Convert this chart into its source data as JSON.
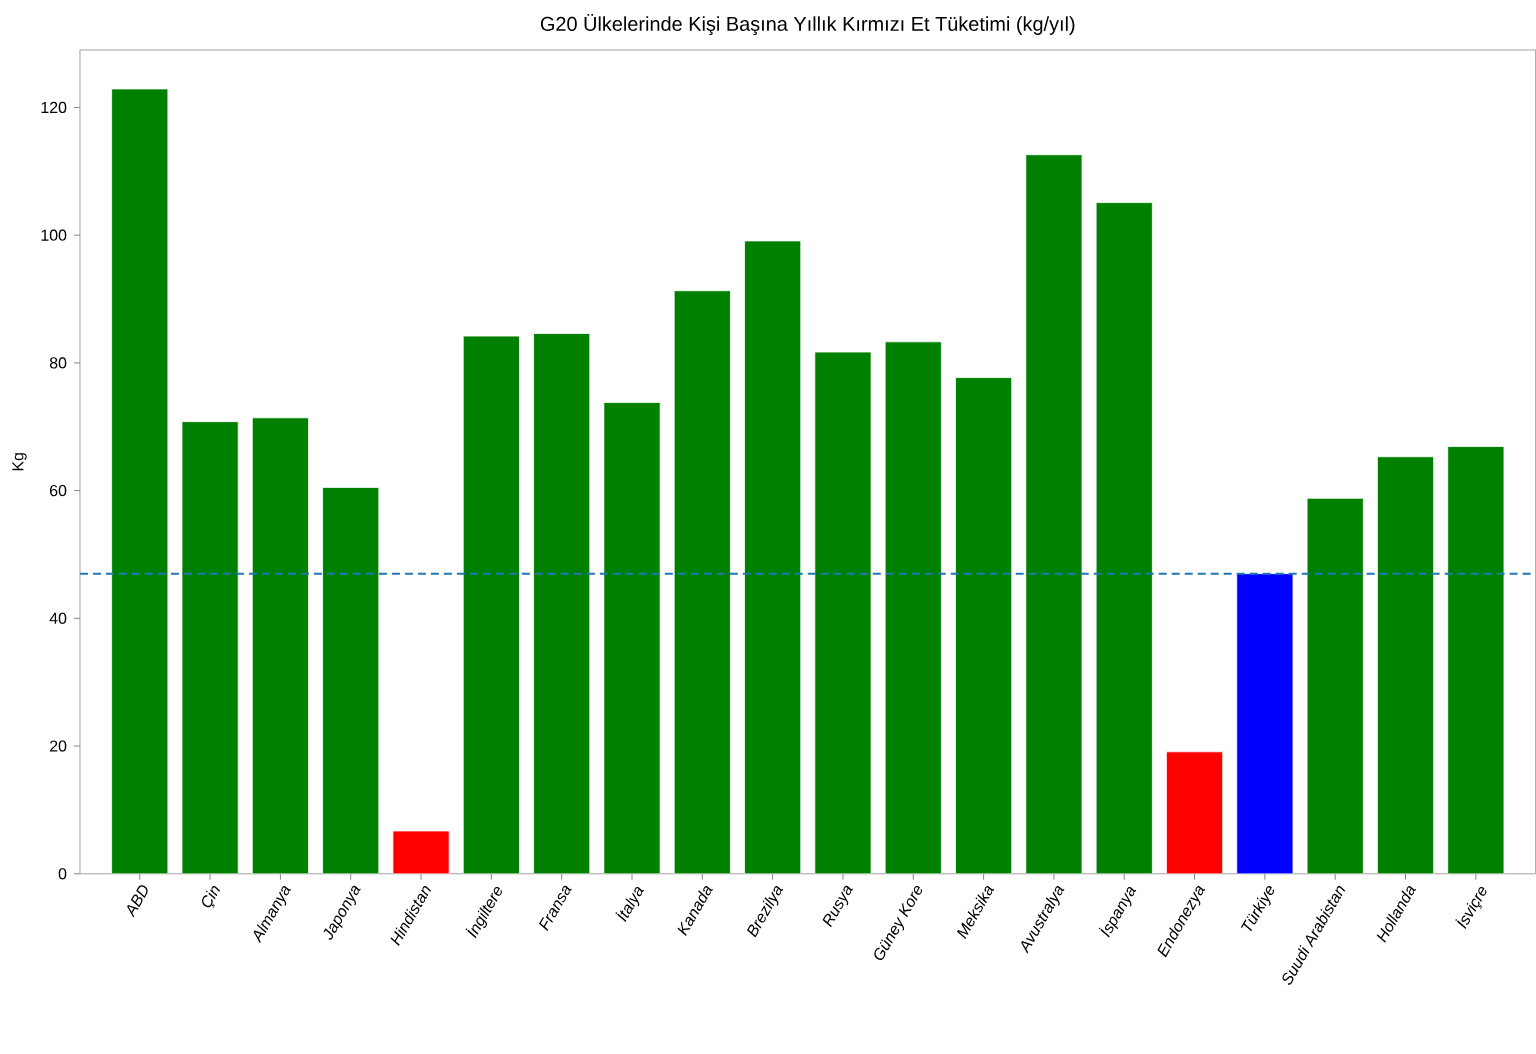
{
  "chart_data": {
    "type": "bar",
    "title": "G20 Ülkelerinde Kişi Başına Yıllık Kırmızı Et Tüketimi (kg/yıl)",
    "ylabel": "Kg",
    "categories": [
      "ABD",
      "Çin",
      "Almanya",
      "Japonya",
      "Hindistan",
      "İngiltere",
      "Fransa",
      "İtalya",
      "Kanada",
      "Brezilya",
      "Rusya",
      "Güney Kore",
      "Meksika",
      "Avustralya",
      "İspanya",
      "Endonezya",
      "Türkiye",
      "Suudi Arabistan",
      "Hollanda",
      "İsviçre"
    ],
    "values": [
      122.9,
      70.8,
      71.4,
      60.5,
      6.7,
      84.2,
      84.6,
      73.8,
      91.3,
      99.1,
      81.7,
      83.3,
      77.7,
      112.6,
      105.1,
      19.1,
      47.0,
      58.8,
      65.3,
      66.9
    ],
    "colors": [
      "#008000",
      "#008000",
      "#008000",
      "#008000",
      "#ff0000",
      "#008000",
      "#008000",
      "#008000",
      "#008000",
      "#008000",
      "#008000",
      "#008000",
      "#008000",
      "#008000",
      "#008000",
      "#ff0000",
      "#0000ff",
      "#008000",
      "#008000",
      "#008000"
    ],
    "ylim": [
      0,
      129
    ],
    "yticks": [
      0,
      20,
      40,
      60,
      80,
      100,
      120
    ],
    "ref_lines": [
      {
        "axis": "y",
        "value": 47.0,
        "color": "#1f77b4",
        "line_style": "dashed"
      }
    ]
  }
}
